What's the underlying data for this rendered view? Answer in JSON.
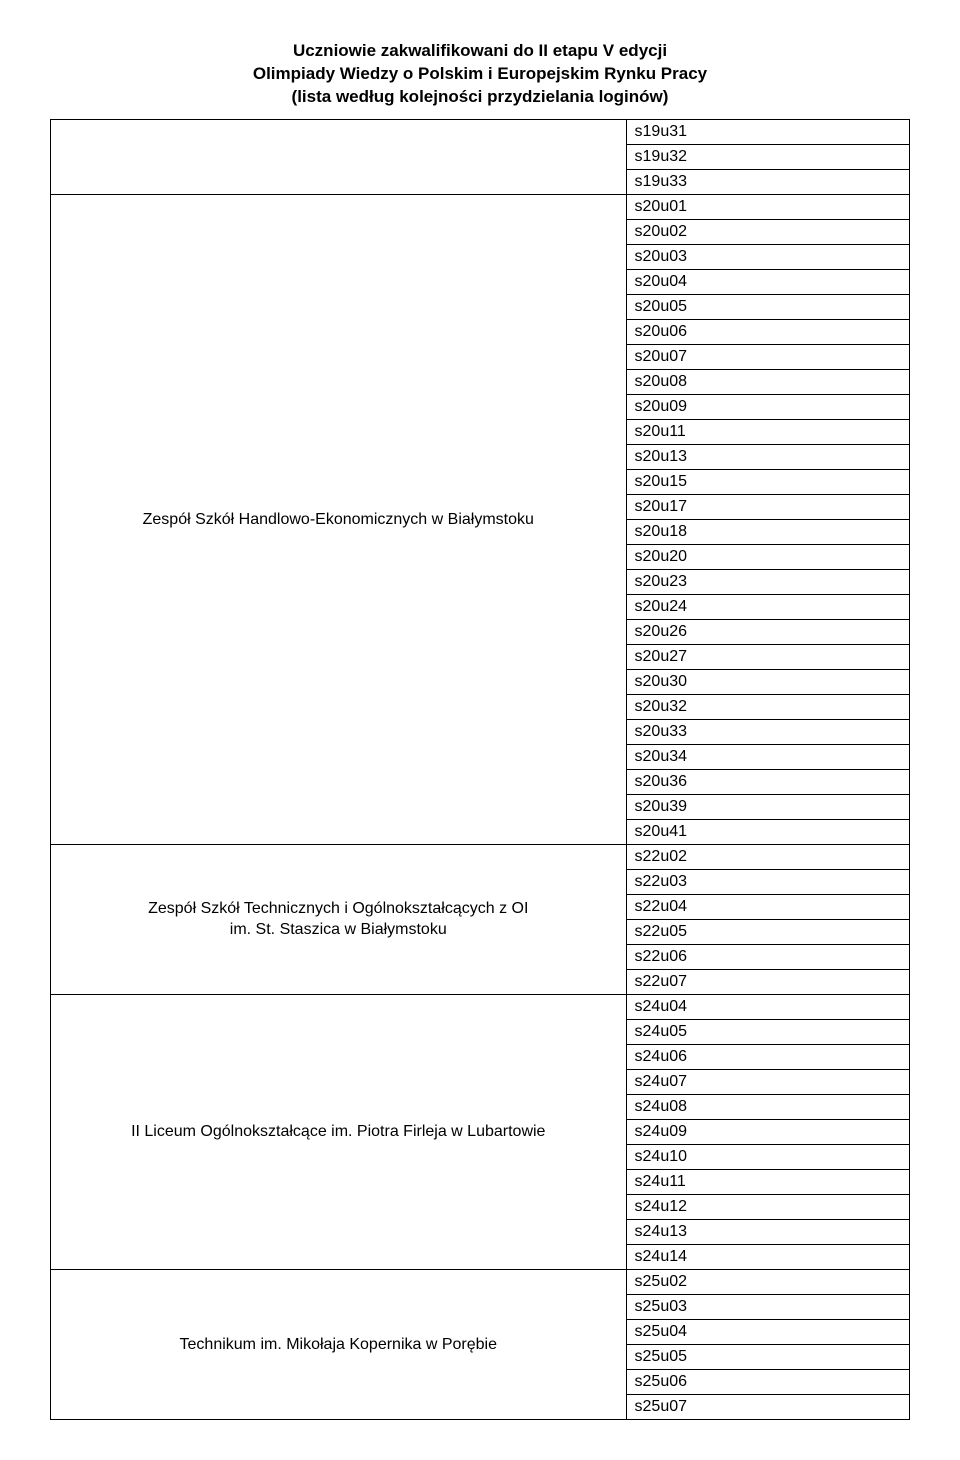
{
  "header": {
    "line1": "Uczniowie zakwalifikowani do II etapu V edycji",
    "line2": "Olimpiady Wiedzy o Polskim i Europejskim Rynku Pracy",
    "line3": "(lista według kolejności przydzielania loginów)"
  },
  "rows": [
    {
      "school": "",
      "codes": [
        "s19u31",
        "s19u32",
        "s19u33"
      ]
    },
    {
      "school": "Zespół Szkół Handlowo-Ekonomicznych w Białymstoku",
      "codes": [
        "s20u01",
        "s20u02",
        "s20u03",
        "s20u04",
        "s20u05",
        "s20u06",
        "s20u07",
        "s20u08",
        "s20u09",
        "s20u11",
        "s20u13",
        "s20u15",
        "s20u17",
        "s20u18",
        "s20u20",
        "s20u23",
        "s20u24",
        "s20u26",
        "s20u27",
        "s20u30",
        "s20u32",
        "s20u33",
        "s20u34",
        "s20u36",
        "s20u39",
        "s20u41"
      ]
    },
    {
      "school": "Zespół Szkół Technicznych i Ogólnokształcących z OI\nim. St. Staszica w Białymstoku",
      "codes": [
        "s22u02",
        "s22u03",
        "s22u04",
        "s22u05",
        "s22u06",
        "s22u07"
      ]
    },
    {
      "school": "II Liceum Ogólnokształcące im. Piotra Firleja w Lubartowie",
      "codes": [
        "s24u04",
        "s24u05",
        "s24u06",
        "s24u07",
        "s24u08",
        "s24u09",
        "s24u10",
        "s24u11",
        "s24u12",
        "s24u13",
        "s24u14"
      ]
    },
    {
      "school": "Technikum im. Mikołaja Kopernika w Porębie",
      "codes": [
        "s25u02",
        "s25u03",
        "s25u04",
        "s25u05",
        "s25u06",
        "s25u07"
      ]
    }
  ]
}
